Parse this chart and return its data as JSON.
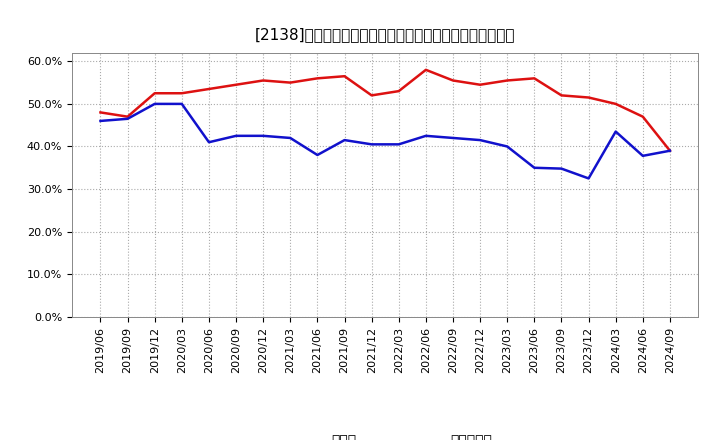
{
  "title": "[2138]　現預金、有利子負債の総資産に対する比率の推移",
  "x_labels": [
    "2019/06",
    "2019/09",
    "2019/12",
    "2020/03",
    "2020/06",
    "2020/09",
    "2020/12",
    "2021/03",
    "2021/06",
    "2021/09",
    "2021/12",
    "2022/03",
    "2022/06",
    "2022/09",
    "2022/12",
    "2023/03",
    "2023/06",
    "2023/09",
    "2023/12",
    "2024/03",
    "2024/06",
    "2024/09"
  ],
  "cash_values": [
    0.48,
    0.47,
    0.525,
    0.525,
    0.535,
    0.545,
    0.555,
    0.55,
    0.56,
    0.565,
    0.52,
    0.53,
    0.58,
    0.555,
    0.545,
    0.555,
    0.56,
    0.52,
    0.515,
    0.5,
    0.47,
    0.39
  ],
  "debt_values": [
    0.46,
    0.465,
    0.5,
    0.5,
    0.41,
    0.425,
    0.425,
    0.42,
    0.38,
    0.415,
    0.405,
    0.405,
    0.425,
    0.42,
    0.415,
    0.4,
    0.35,
    0.348,
    0.325,
    0.435,
    0.378,
    0.39
  ],
  "cash_color": "#dd1111",
  "debt_color": "#1111cc",
  "ylim": [
    0.0,
    0.62
  ],
  "yticks": [
    0.0,
    0.1,
    0.2,
    0.3,
    0.4,
    0.5,
    0.6
  ],
  "legend_cash": "現預金",
  "legend_debt": "有利子負債",
  "bg_color": "#ffffff",
  "grid_color": "#aaaaaa",
  "title_fontsize": 11,
  "legend_fontsize": 10,
  "tick_fontsize": 8,
  "line_width": 1.8
}
